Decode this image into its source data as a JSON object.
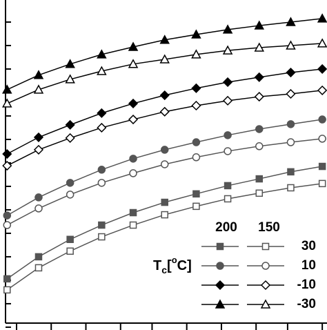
{
  "chart_data": {
    "type": "line",
    "x": [
      0,
      1,
      2,
      3,
      4,
      5,
      6,
      7,
      8,
      9,
      10
    ],
    "xlim": [
      -0.05,
      10.15
    ],
    "xticks": [
      0.3,
      1.4,
      2.5,
      3.6,
      4.6,
      5.7,
      6.8,
      7.9,
      8.9,
      10.0
    ],
    "ylim": [
      -0.12,
      13.94
    ],
    "yticks": [
      0,
      1,
      2,
      3,
      4,
      5,
      6,
      7,
      8,
      9,
      10,
      11,
      12,
      13
    ],
    "series": [
      {
        "color": "#555555",
        "marker": "square",
        "filled": true,
        "values": [
          2.06,
          3.0,
          3.74,
          4.35,
          4.88,
          5.32,
          5.68,
          6.03,
          6.32,
          6.62,
          6.85
        ]
      },
      {
        "color": "#555555",
        "marker": "square",
        "filled": false,
        "values": [
          1.59,
          2.53,
          3.24,
          3.85,
          4.35,
          4.79,
          5.15,
          5.47,
          5.71,
          5.94,
          6.12
        ]
      },
      {
        "color": "#555555",
        "marker": "circle",
        "filled": true,
        "values": [
          4.76,
          5.53,
          6.15,
          6.71,
          7.18,
          7.56,
          7.88,
          8.18,
          8.44,
          8.65,
          8.85
        ]
      },
      {
        "color": "#555555",
        "marker": "circle",
        "filled": false,
        "values": [
          4.35,
          5.06,
          5.65,
          6.15,
          6.56,
          6.94,
          7.24,
          7.5,
          7.71,
          7.88,
          8.03
        ]
      },
      {
        "color": "#000000",
        "marker": "diamond",
        "filled": true,
        "values": [
          7.38,
          8.09,
          8.62,
          9.12,
          9.53,
          9.88,
          10.18,
          10.44,
          10.65,
          10.85,
          11.0
        ]
      },
      {
        "color": "#000000",
        "marker": "diamond",
        "filled": false,
        "values": [
          6.88,
          7.56,
          8.06,
          8.5,
          8.85,
          9.18,
          9.44,
          9.65,
          9.82,
          9.94,
          10.09
        ]
      },
      {
        "color": "#000000",
        "marker": "triangle",
        "filled": true,
        "values": [
          10.12,
          10.74,
          11.21,
          11.62,
          11.94,
          12.24,
          12.47,
          12.68,
          12.85,
          13.0,
          13.15
        ]
      },
      {
        "color": "#000000",
        "marker": "triangle",
        "filled": false,
        "values": [
          9.53,
          10.12,
          10.56,
          10.91,
          11.21,
          11.41,
          11.62,
          11.79,
          11.91,
          12.0,
          12.09
        ]
      }
    ],
    "legend": {
      "columns": [
        "200",
        "150"
      ],
      "rows": [
        "30",
        "10",
        "-10",
        "-30"
      ],
      "title": {
        "main": "T",
        "sub": "c",
        "open": "[",
        "sup": "o",
        "close": "C]"
      }
    }
  }
}
